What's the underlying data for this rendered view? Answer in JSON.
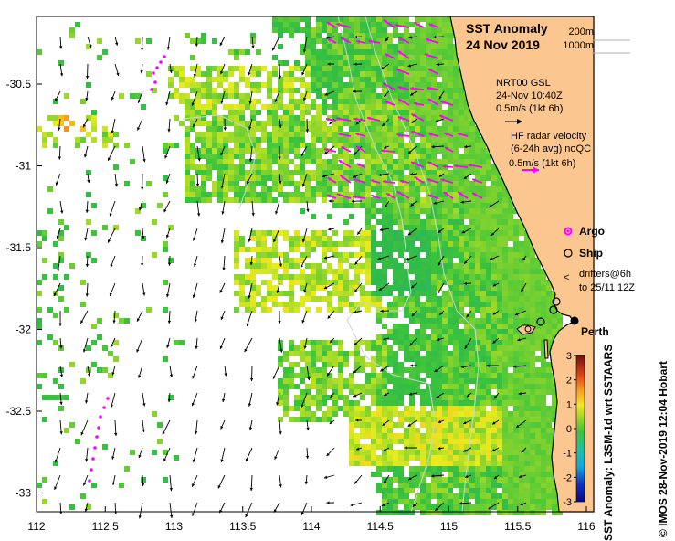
{
  "title": {
    "line1": "SST Anomaly",
    "line2": "24 Nov 2019"
  },
  "isobaths": {
    "shallow": "200m",
    "deep": "1000m"
  },
  "gsl_vector": {
    "line1": "NRT00 GSL",
    "line2": "24-Nov 10:40Z",
    "line3": "0.5m/s (1kt 6h)"
  },
  "hf_radar": {
    "line1": "HF radar velocity",
    "line2": "(6-24h avg) noQC",
    "line3": "0.5m/s (1kt 6h)"
  },
  "markers": {
    "argo": "Argo",
    "ship": "Ship",
    "drifters_line1": "drifters@6h",
    "drifters_line2": "to 25/11 12Z",
    "city": "Perth"
  },
  "colorbar": {
    "label": "SST Anomaly: L3SM-1d wrt SSTAARS",
    "ticks": [
      "3",
      "2",
      "1",
      "0",
      "-1",
      "-2",
      "-3"
    ],
    "min": -3,
    "max": 3
  },
  "credit": "© IMOS 28-Nov-2019 12:04 Hobart",
  "axes": {
    "x_ticks": [
      "112",
      "112.5",
      "113",
      "113.5",
      "114",
      "114.5",
      "115",
      "115.5",
      "116"
    ],
    "y_ticks": [
      "-30.5",
      "-31",
      "-31.5",
      "-32",
      "-32.5",
      "-33"
    ],
    "lon_range": [
      112,
      116.1
    ],
    "lat_range": [
      -33.1,
      -30.1
    ]
  },
  "colors": {
    "land": "#fcc690",
    "coast": "#000000",
    "radar_arrow": "#ff00ff",
    "gsl_arrow": "#000000"
  }
}
